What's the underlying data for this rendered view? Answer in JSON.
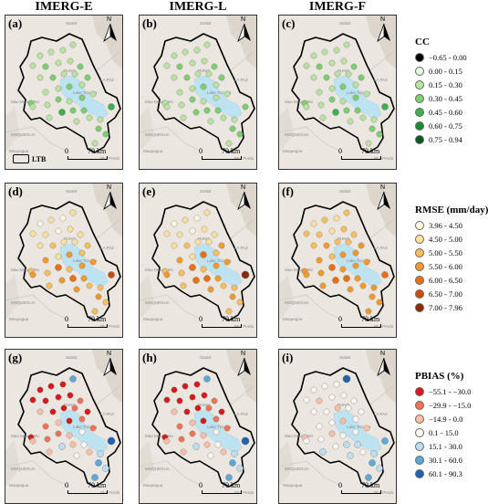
{
  "columns": [
    "IMERG-E",
    "IMERG-L",
    "IMERG-F"
  ],
  "map_labels": {
    "peru_top": "Statist",
    "puno": "PUNO",
    "la_paz": "LA PAZ",
    "lake": "Lake Titicaca",
    "tacna_left": "Mao Mouse Mo",
    "moquegua": "MOQUEGUA",
    "moquegua_city": "Moquegua",
    "tacna_bottom": "Pto. Perdo"
  },
  "scale_bar": {
    "start": "0",
    "end": "70 km"
  },
  "basin_label": "LTB",
  "north_arrow": "N",
  "rows": [
    {
      "metric": "CC",
      "legend_title": "CC",
      "classes": [
        {
          "label": "−0.65 - 0.00",
          "color": "#000000"
        },
        {
          "label": "0.00 - 0.15",
          "color": "#e8f5e0"
        },
        {
          "label": "0.15 - 0.30",
          "color": "#b9e3a3"
        },
        {
          "label": "0.30 - 0.45",
          "color": "#7ccf6e"
        },
        {
          "label": "0.45 - 0.60",
          "color": "#3cb050"
        },
        {
          "label": "0.60 - 0.75",
          "color": "#1a8a3a"
        },
        {
          "label": "0.75 - 0.94",
          "color": "#0b5a24"
        }
      ],
      "panels": [
        {
          "label": "(a)",
          "show_ltb": true,
          "classes": [
            2,
            2,
            2,
            2,
            2,
            3,
            2,
            2,
            3,
            2,
            3,
            2,
            2,
            3,
            3,
            2,
            2,
            3,
            2,
            2,
            2,
            3,
            2,
            3,
            2,
            2,
            4,
            3,
            3,
            4,
            2,
            2,
            2,
            3,
            3,
            2
          ]
        },
        {
          "label": "(b)",
          "show_ltb": false,
          "classes": [
            2,
            2,
            2,
            2,
            2,
            3,
            2,
            2,
            3,
            2,
            3,
            2,
            2,
            3,
            2,
            2,
            2,
            3,
            2,
            2,
            2,
            3,
            2,
            2,
            2,
            2,
            3,
            3,
            3,
            3,
            2,
            2,
            2,
            3,
            3,
            2
          ]
        },
        {
          "label": "(c)",
          "show_ltb": false,
          "classes": [
            2,
            2,
            2,
            2,
            2,
            3,
            2,
            2,
            3,
            2,
            3,
            2,
            2,
            3,
            3,
            2,
            2,
            3,
            2,
            2,
            2,
            3,
            2,
            3,
            2,
            2,
            4,
            3,
            3,
            4,
            2,
            2,
            2,
            3,
            3,
            2
          ]
        }
      ]
    },
    {
      "metric": "RMSE",
      "legend_title": "RMSE (mm/day)",
      "classes": [
        {
          "label": "3.96 - 4.50",
          "color": "#fff7e0"
        },
        {
          "label": "4.50 - 5.00",
          "color": "#fde0a0"
        },
        {
          "label": "5.00 - 5.50",
          "color": "#fbbf5e"
        },
        {
          "label": "5.50 - 6.00",
          "color": "#f49a2a"
        },
        {
          "label": "6.00 - 6.50",
          "color": "#e6701a"
        },
        {
          "label": "6.50 - 7.00",
          "color": "#c94d12"
        },
        {
          "label": "7.00 - 7.96",
          "color": "#8a2a0a"
        }
      ],
      "panels": [
        {
          "label": "(d)",
          "show_ltb": false,
          "classes": [
            0,
            1,
            0,
            1,
            1,
            1,
            0,
            1,
            1,
            1,
            2,
            1,
            1,
            2,
            2,
            3,
            1,
            3,
            2,
            3,
            2,
            4,
            2,
            3,
            3,
            2,
            3,
            4,
            3,
            5,
            3,
            2,
            2,
            3,
            2,
            2
          ]
        },
        {
          "label": "(e)",
          "show_ltb": false,
          "classes": [
            0,
            1,
            0,
            1,
            1,
            1,
            0,
            1,
            1,
            1,
            2,
            1,
            1,
            3,
            2,
            3,
            1,
            4,
            2,
            3,
            2,
            4,
            2,
            3,
            3,
            2,
            4,
            4,
            3,
            6,
            3,
            2,
            2,
            3,
            2,
            2
          ]
        },
        {
          "label": "(f)",
          "show_ltb": false,
          "classes": [
            1,
            2,
            1,
            2,
            2,
            2,
            1,
            2,
            2,
            2,
            3,
            2,
            2,
            3,
            3,
            3,
            2,
            3,
            3,
            3,
            3,
            4,
            3,
            3,
            3,
            3,
            4,
            4,
            3,
            4,
            3,
            3,
            3,
            3,
            3,
            3
          ]
        }
      ]
    },
    {
      "metric": "PBIAS",
      "legend_title": "PBIAS (%)",
      "classes": [
        {
          "label": "−55.1 - −30.0",
          "color": "#d7191c"
        },
        {
          "label": "−29.9 - −15.0",
          "color": "#ef7358"
        },
        {
          "label": "−14.9 - 0.0",
          "color": "#fbc0a8"
        },
        {
          "label": "0.1 - 15.0",
          "color": "#fdf6f0"
        },
        {
          "label": "15.1 - 30.0",
          "color": "#bfdcf0"
        },
        {
          "label": "30.1 - 60.0",
          "color": "#5ea9d6"
        },
        {
          "label": "60.1 - 90.3",
          "color": "#1f63b0"
        }
      ],
      "panels": [
        {
          "label": "(g)",
          "show_ltb": false,
          "classes": [
            0,
            0,
            0,
            5,
            0,
            0,
            0,
            0,
            1,
            2,
            0,
            0,
            1,
            0,
            0,
            1,
            2,
            0,
            1,
            2,
            1,
            1,
            2,
            3,
            1,
            2,
            4,
            2,
            3,
            6,
            3,
            2,
            4,
            5,
            4,
            5
          ]
        },
        {
          "label": "(h)",
          "show_ltb": false,
          "classes": [
            0,
            0,
            0,
            5,
            0,
            0,
            0,
            0,
            1,
            2,
            0,
            0,
            1,
            0,
            0,
            1,
            2,
            0,
            1,
            2,
            1,
            1,
            2,
            3,
            1,
            2,
            4,
            2,
            3,
            6,
            3,
            2,
            4,
            5,
            4,
            5
          ]
        },
        {
          "label": "(i)",
          "show_ltb": false,
          "classes": [
            3,
            3,
            3,
            6,
            3,
            2,
            3,
            3,
            3,
            3,
            3,
            2,
            3,
            3,
            2,
            3,
            3,
            2,
            3,
            3,
            3,
            2,
            3,
            3,
            2,
            4,
            3,
            4,
            4,
            5,
            4,
            3,
            4,
            5,
            4,
            5
          ]
        }
      ]
    }
  ]
}
